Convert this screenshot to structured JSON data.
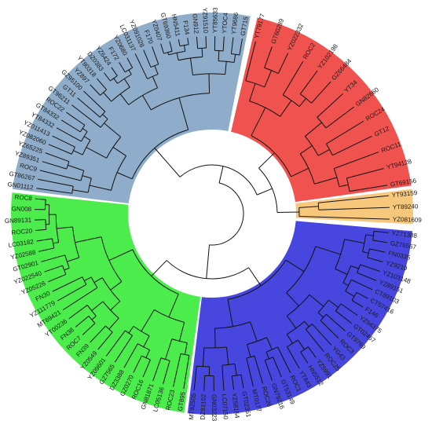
{
  "clades": [
    {
      "name": "red-clade",
      "color": "#f0524f",
      "leaves": [
        "YT79177",
        "GT60289",
        "YZ022332",
        "ROC2",
        "YZ102198",
        "GZ66484",
        "YT34",
        "GN82660",
        "ROC24",
        "GT12",
        "ROC11",
        "YT94128",
        "GT69156"
      ]
    },
    {
      "name": "orange-clade",
      "color": "#f7c87c",
      "leaves": [
        "YT93159",
        "YT89240",
        "YZ081609"
      ]
    },
    {
      "name": "blue-clade",
      "color": "#4747e0",
      "leaves": [
        "YZ71388",
        "GZ76567",
        "FN0335",
        "YZ9219",
        "YZ103148",
        "YZ89151",
        "CT89103",
        "CT57416",
        "F146",
        "YZ94375",
        "GT02467",
        "GT9769",
        "ROC3",
        "YG43",
        "ROC25",
        "YZ5991",
        "HN5512",
        "YT843",
        "ROC1",
        "GT53149",
        "GN79216",
        "ROC26",
        "MT0177",
        "GT02351",
        "YZ58154",
        "LC07150",
        "GN03223",
        "DZ93102",
        "MT92505"
      ]
    },
    {
      "name": "green-clade",
      "color": "#4cec4c",
      "leaves": [
        "GT895",
        "ROC23",
        "LC05136",
        "GN81871",
        "ROC16",
        "GZ0270",
        "DZ3388",
        "GZ7565",
        "YZ09601",
        "YZ0549",
        "FN39",
        "ROC7",
        "FN38",
        "YT00236",
        "MT69421",
        "YZ111779",
        "FN30",
        "YZ05226",
        "YZ022540",
        "GT02901",
        "YZ02588",
        "LC03182",
        "ROC20",
        "GN89131",
        "GN008",
        "ROC8"
      ]
    },
    {
      "name": "steel-clade",
      "color": "#8fadcb",
      "leaves": [
        "GN01112",
        "GT86267",
        "ROC9",
        "YZ89351",
        "YZ65225",
        "YZ082060",
        "YZ011413",
        "YT84332",
        "GT84332",
        "ROC22",
        "GT96211",
        "GT11",
        "GZ95100",
        "YZ897",
        "YT80318",
        "DZ0383",
        "YZ6424",
        "F172",
        "YZ0680",
        "LC031137",
        "YZ091028",
        "F170",
        "YZ0407",
        "GT69360",
        "HN5411",
        "F134",
        "GN912",
        "YZ91510",
        "YT85633",
        "YTOC4",
        "YT9686",
        "GT715"
      ]
    }
  ]
}
